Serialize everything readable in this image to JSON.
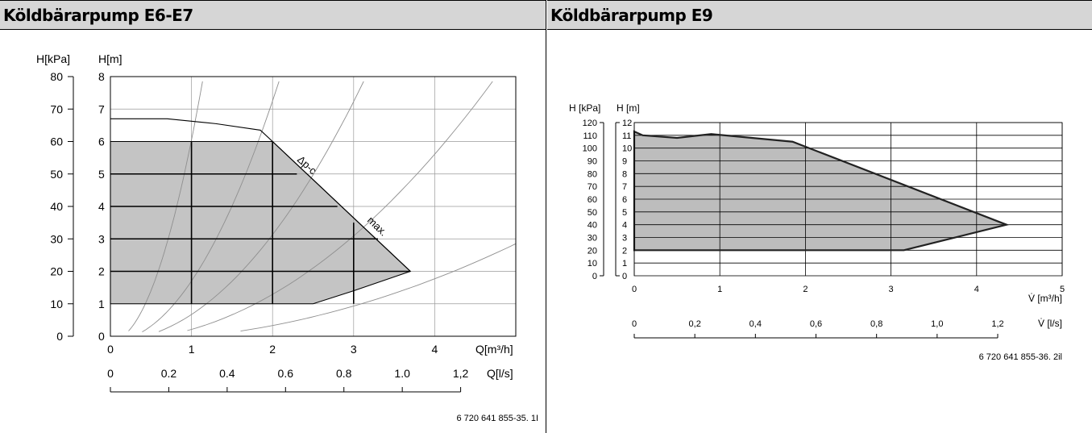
{
  "chart_data": [
    {
      "type": "area",
      "title": "Köldbärarpump E6-E7",
      "ylabel_left": "H[kPa]",
      "ylabel_right": "H[m]",
      "xlabel": "Q[m³/h]",
      "xlabel2": "Q[l/s]",
      "x_ticks": [
        "0",
        "1",
        "2",
        "3",
        "4"
      ],
      "x2_ticks": [
        "0",
        "0.2",
        "0.4",
        "0.6",
        "0.8",
        "1.0",
        "1,2"
      ],
      "y_kpa_ticks": [
        "0",
        "10",
        "20",
        "30",
        "40",
        "50",
        "60",
        "70",
        "80"
      ],
      "y_m_ticks": [
        "0",
        "1",
        "2",
        "3",
        "4",
        "5",
        "6",
        "7",
        "8"
      ],
      "xlim": [
        0,
        5
      ],
      "ylim": [
        0,
        8
      ],
      "operating_area": [
        [
          0,
          1
        ],
        [
          0,
          6
        ],
        [
          2,
          6
        ],
        [
          3.7,
          2
        ],
        [
          3.0,
          1.4
        ],
        [
          2.5,
          1
        ],
        [
          0,
          1
        ]
      ],
      "curve_max": [
        [
          0,
          6.7
        ],
        [
          0.7,
          6.7
        ],
        [
          1.3,
          6.55
        ],
        [
          1.85,
          6.35
        ],
        [
          2,
          6
        ],
        [
          3.7,
          2
        ]
      ],
      "annotations": [
        "Δp-c",
        "max."
      ],
      "code": "6 720 641 855-35. 1I"
    },
    {
      "type": "area",
      "title": "Köldbärarpump E9",
      "ylabel_left": "H [kPa]",
      "ylabel_right": "H [m]",
      "xlabel": "V̇ [m³/h]",
      "xlabel2": "V̇ [l/s]",
      "x_ticks": [
        "0",
        "1",
        "2",
        "3",
        "4",
        "5"
      ],
      "x2_ticks": [
        "0",
        "0,2",
        "0,4",
        "0,6",
        "0,8",
        "1,0",
        "1,2"
      ],
      "y_kpa_ticks": [
        "0",
        "10",
        "20",
        "30",
        "40",
        "50",
        "60",
        "70",
        "80",
        "90",
        "100",
        "110",
        "120"
      ],
      "y_m_ticks": [
        "0",
        "1",
        "2",
        "3",
        "4",
        "5",
        "6",
        "7",
        "8",
        "9",
        "10",
        "11",
        "12"
      ],
      "xlim": [
        0,
        5
      ],
      "ylim": [
        0,
        12
      ],
      "operating_area": [
        [
          0,
          11.3
        ],
        [
          0.1,
          11
        ],
        [
          0.5,
          10.8
        ],
        [
          0.9,
          11.1
        ],
        [
          1.85,
          10.5
        ],
        [
          4.35,
          4
        ],
        [
          3.15,
          2
        ],
        [
          0,
          2
        ]
      ],
      "code": "6 720 641 855-36. 2il"
    }
  ]
}
